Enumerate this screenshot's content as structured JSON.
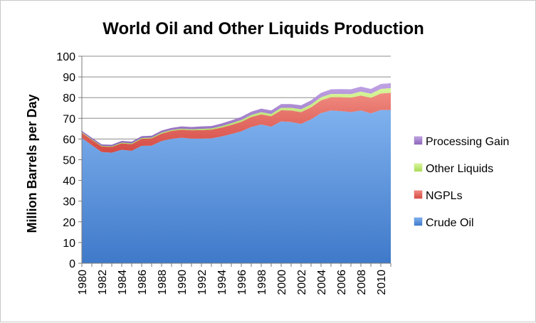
{
  "chart_data": {
    "type": "area",
    "stacked": true,
    "title": "World Oil and Other Liquids Production",
    "xlabel": "",
    "ylabel": "Million Barrels per Day",
    "ylim": [
      0,
      100
    ],
    "yticks": [
      0,
      10,
      20,
      30,
      40,
      50,
      60,
      70,
      80,
      90,
      100
    ],
    "xticks": [
      1980,
      1982,
      1984,
      1986,
      1988,
      1990,
      1992,
      1994,
      1996,
      1998,
      2000,
      2002,
      2004,
      2006,
      2008,
      2010
    ],
    "grid": "horizontal",
    "legend_position": "right",
    "x": [
      1980,
      1981,
      1982,
      1983,
      1984,
      1985,
      1986,
      1987,
      1988,
      1989,
      1990,
      1991,
      1992,
      1993,
      1994,
      1995,
      1996,
      1997,
      1998,
      1999,
      2000,
      2001,
      2002,
      2003,
      2004,
      2005,
      2006,
      2007,
      2008,
      2009,
      2010,
      2011
    ],
    "series": [
      {
        "name": "Crude Oil",
        "color": "#5b8fd6",
        "values": [
          60.5,
          57.0,
          53.7,
          53.4,
          54.8,
          54.3,
          56.7,
          56.8,
          59.0,
          60.1,
          60.6,
          60.2,
          60.2,
          60.3,
          61.2,
          62.4,
          63.7,
          65.8,
          67.0,
          66.0,
          68.5,
          68.2,
          67.3,
          69.5,
          72.5,
          73.8,
          73.5,
          73.0,
          73.8,
          72.4,
          74.0,
          74.0
        ]
      },
      {
        "name": "NGPLs",
        "color": "#e8605a",
        "values": [
          2.5,
          2.6,
          2.7,
          2.8,
          3.1,
          3.2,
          3.4,
          3.5,
          3.6,
          3.8,
          3.9,
          4.0,
          4.1,
          4.2,
          4.3,
          4.4,
          4.6,
          4.8,
          4.9,
          5.0,
          5.4,
          5.6,
          5.7,
          5.8,
          6.2,
          6.4,
          6.7,
          7.0,
          7.2,
          7.5,
          8.0,
          8.3
        ]
      },
      {
        "name": "Other Liquids",
        "color": "#c4e97a",
        "values": [
          0.3,
          0.3,
          0.3,
          0.3,
          0.4,
          0.4,
          0.4,
          0.4,
          0.5,
          0.5,
          0.5,
          0.5,
          0.6,
          0.6,
          0.7,
          0.8,
          0.9,
          1.0,
          1.1,
          1.1,
          1.2,
          1.3,
          1.4,
          1.4,
          1.5,
          1.6,
          1.6,
          1.7,
          1.9,
          2.0,
          2.2,
          2.3
        ]
      },
      {
        "name": "Processing Gain",
        "color": "#a07cc8",
        "values": [
          0.7,
          0.7,
          0.7,
          0.7,
          0.8,
          0.8,
          0.9,
          0.9,
          1.0,
          1.0,
          1.1,
          1.1,
          1.2,
          1.2,
          1.3,
          1.4,
          1.5,
          1.6,
          1.7,
          1.7,
          1.8,
          1.8,
          1.9,
          2.0,
          2.1,
          2.2,
          2.3,
          2.3,
          2.4,
          2.3,
          2.4,
          2.4
        ]
      }
    ],
    "legend_order": [
      "Processing Gain",
      "Other Liquids",
      "NGPLs",
      "Crude Oil"
    ]
  }
}
